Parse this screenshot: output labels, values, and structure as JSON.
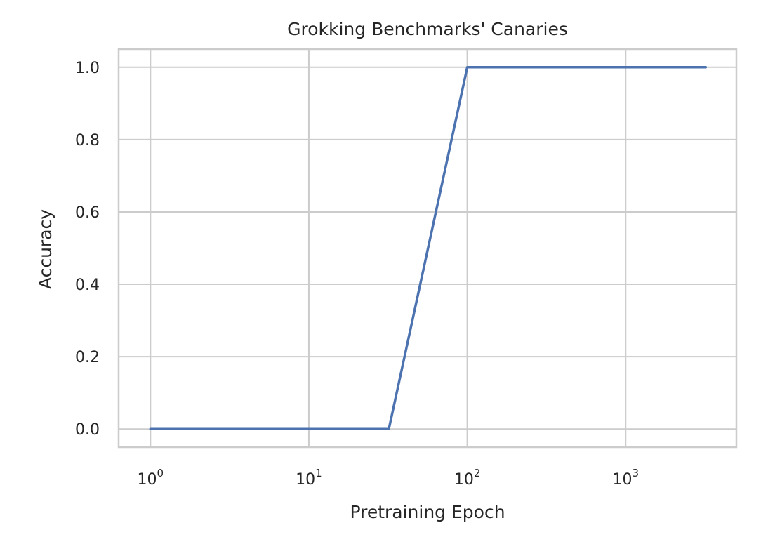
{
  "chart_data": {
    "type": "line",
    "title": "Grokking Benchmarks' Canaries",
    "xlabel": "Pretraining Epoch",
    "ylabel": "Accuracy",
    "xscale": "log",
    "xlim": [
      0.63,
      5000
    ],
    "ylim": [
      -0.05,
      1.05
    ],
    "grid": true,
    "x_ticks": [
      {
        "value": 1,
        "base": "10",
        "exp": "0"
      },
      {
        "value": 10,
        "base": "10",
        "exp": "1"
      },
      {
        "value": 100,
        "base": "10",
        "exp": "2"
      },
      {
        "value": 1000,
        "base": "10",
        "exp": "3"
      }
    ],
    "y_ticks": [
      {
        "value": 0.0,
        "label": "0.0"
      },
      {
        "value": 0.2,
        "label": "0.2"
      },
      {
        "value": 0.4,
        "label": "0.4"
      },
      {
        "value": 0.6,
        "label": "0.6"
      },
      {
        "value": 0.8,
        "label": "0.8"
      },
      {
        "value": 1.0,
        "label": "1.0"
      }
    ],
    "series": [
      {
        "color": "#4c72b0",
        "x": [
          1,
          2,
          4,
          8,
          16,
          32,
          100,
          200,
          400,
          800,
          1600,
          3200
        ],
        "y": [
          0,
          0,
          0,
          0,
          0,
          0,
          1,
          1,
          1,
          1,
          1,
          1
        ]
      }
    ]
  }
}
